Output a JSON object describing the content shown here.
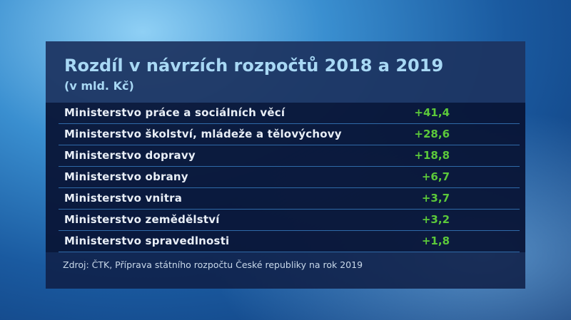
{
  "title": "Rozdíl v návrzích rozpočtů 2018 a 2019",
  "subtitle": "(v mld. Kč)",
  "source": "Zdroj: ČTK, Příprava státního rozpočtu České republiky na rok 2019",
  "colors": {
    "title": "#a8d8f4",
    "value": "#5cc93a",
    "panel": "#0f1e46"
  },
  "chart_data": {
    "type": "table",
    "title": "Rozdíl v návrzích rozpočtů 2018 a 2019",
    "subtitle": "(v mld. Kč)",
    "rows": [
      {
        "label": "Ministerstvo práce a sociálních věcí",
        "value": "+41,4"
      },
      {
        "label": "Ministerstvo školství, mládeže a tělovýchovy",
        "value": "+28,6"
      },
      {
        "label": "Ministerstvo dopravy",
        "value": "+18,8"
      },
      {
        "label": "Ministerstvo obrany",
        "value": "+6,7"
      },
      {
        "label": "Ministerstvo vnitra",
        "value": "+3,7"
      },
      {
        "label": "Ministerstvo zemědělství",
        "value": "+3,2"
      },
      {
        "label": "Ministerstvo spravedlnosti",
        "value": "+1,8"
      }
    ]
  }
}
